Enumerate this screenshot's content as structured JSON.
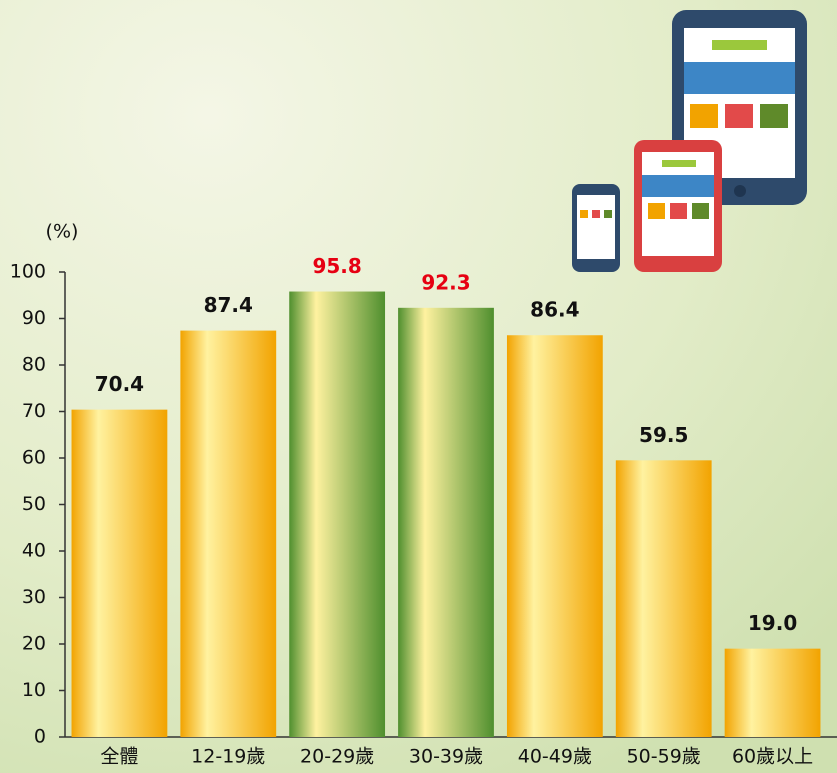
{
  "chart_data": {
    "type": "bar",
    "y_unit": "(%)",
    "categories": [
      "全體",
      "12-19歲",
      "20-29歲",
      "30-39歲",
      "40-49歲",
      "50-59歲",
      "60歲以上"
    ],
    "values": [
      70.4,
      87.4,
      95.8,
      92.3,
      86.4,
      59.5,
      19.0
    ],
    "value_labels": [
      "70.4",
      "87.4",
      "95.8",
      "92.3",
      "86.4",
      "59.5",
      "19.0"
    ],
    "colors": [
      "#f2a300",
      "#f2a300",
      "#4f8f2e",
      "#4f8f2e",
      "#f2a300",
      "#f2a300",
      "#f2a300"
    ],
    "label_colors": [
      "#111111",
      "#111111",
      "#e60012",
      "#e60012",
      "#111111",
      "#111111",
      "#111111"
    ],
    "ylim": [
      0,
      100
    ],
    "yticks": [
      0,
      10,
      20,
      30,
      40,
      50,
      60,
      70,
      80,
      90,
      100
    ]
  }
}
